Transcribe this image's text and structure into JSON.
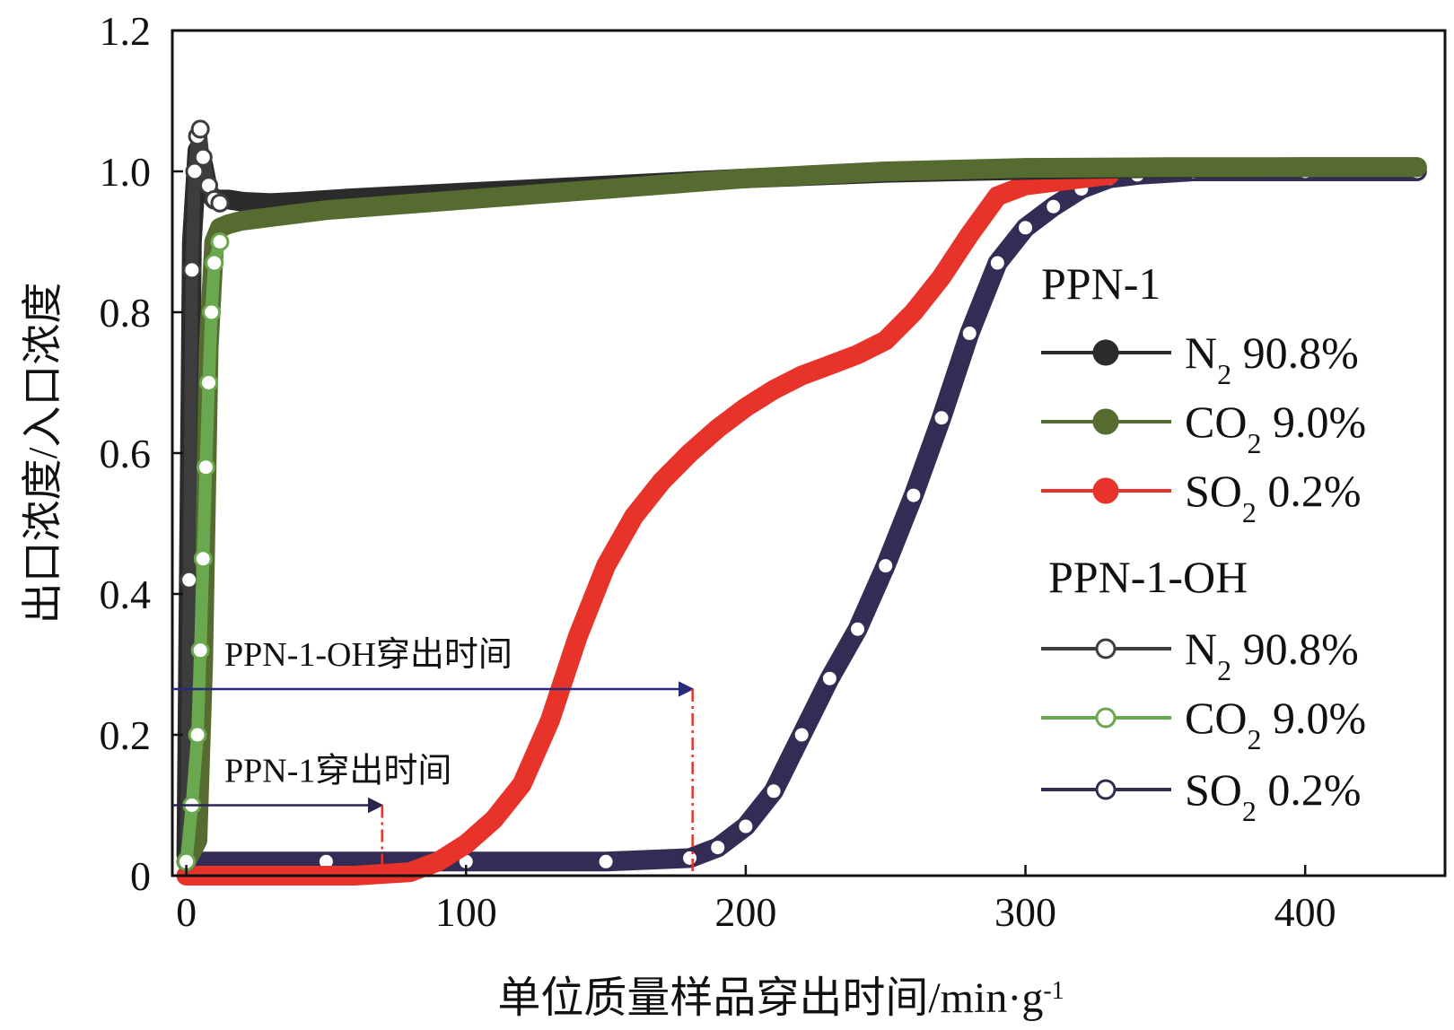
{
  "chart_data": {
    "type": "line",
    "title": "",
    "xlabel": "单位质量样品穿出时间/min·g",
    "xlabel_sup": "-1",
    "ylabel": "出口浓度/入口浓度",
    "xlim": [
      -5,
      450
    ],
    "ylim": [
      0,
      1.2
    ],
    "xticks": [
      0,
      100,
      200,
      300,
      400
    ],
    "yticks": [
      0,
      0.2,
      0.4,
      0.6,
      0.8,
      1.0,
      1.2
    ],
    "ytick_labels": [
      "0",
      "0.2",
      "0.4",
      "0.6",
      "0.8",
      "1.0",
      "1.2"
    ],
    "grid": false,
    "legend_position": "right",
    "legend_groups": [
      {
        "title": "PPN-1",
        "entries": [
          {
            "gas": "N",
            "sub": "2",
            "value": " 90.8%",
            "series": 0
          },
          {
            "gas": "CO",
            "sub": "2",
            "value": " 9.0%",
            "series": 1
          },
          {
            "gas": "SO",
            "sub": "2",
            "value": " 0.2%",
            "series": 2
          }
        ]
      },
      {
        "title": "PPN-1-OH",
        "entries": [
          {
            "gas": "N",
            "sub": "2",
            "value": " 90.8%",
            "series": 3
          },
          {
            "gas": "CO",
            "sub": "2",
            "value": " 9.0%",
            "series": 4
          },
          {
            "gas": "SO",
            "sub": "2",
            "value": " 0.2%",
            "series": 5
          }
        ]
      }
    ],
    "series": [
      {
        "group": "PPN-1",
        "color": "#2b2b2b",
        "marker": "filled",
        "x": [
          0,
          2,
          4,
          6,
          8,
          10,
          15,
          20,
          30,
          40,
          60,
          100,
          150,
          200,
          250,
          300,
          350,
          400,
          440
        ],
        "y": [
          0.03,
          0.9,
          1.03,
          1.01,
          0.97,
          0.96,
          0.96,
          0.957,
          0.955,
          0.957,
          0.962,
          0.97,
          0.98,
          0.99,
          0.998,
          1.002,
          1.005,
          1.006,
          1.006
        ]
      },
      {
        "group": "PPN-1",
        "color": "#556b2f",
        "marker": "filled",
        "x": [
          0,
          4,
          6,
          8,
          10,
          12,
          15,
          20,
          30,
          50,
          100,
          150,
          200,
          250,
          300,
          350,
          400,
          440
        ],
        "y": [
          0.02,
          0.05,
          0.3,
          0.75,
          0.9,
          0.92,
          0.925,
          0.93,
          0.935,
          0.945,
          0.96,
          0.975,
          0.99,
          1.0,
          1.005,
          1.006,
          1.006,
          1.006
        ]
      },
      {
        "group": "PPN-1",
        "color": "#e8332a",
        "marker": "filled",
        "x": [
          0,
          60,
          80,
          90,
          100,
          110,
          120,
          130,
          140,
          150,
          160,
          170,
          180,
          190,
          200,
          210,
          220,
          230,
          240,
          250,
          260,
          270,
          280,
          290,
          300,
          310,
          320,
          330
        ],
        "y": [
          0.0,
          0.0,
          0.005,
          0.02,
          0.045,
          0.08,
          0.13,
          0.22,
          0.34,
          0.44,
          0.51,
          0.56,
          0.6,
          0.635,
          0.665,
          0.69,
          0.71,
          0.725,
          0.74,
          0.76,
          0.8,
          0.85,
          0.91,
          0.965,
          0.98,
          0.985,
          0.99,
          0.995
        ]
      },
      {
        "group": "PPN-1-OH",
        "color": "#3d3d3d",
        "marker": "open",
        "x": [
          0,
          1,
          2,
          3,
          4,
          5,
          6,
          8,
          10,
          12
        ],
        "y": [
          0.02,
          0.42,
          0.86,
          1.0,
          1.05,
          1.06,
          1.02,
          0.98,
          0.96,
          0.955
        ]
      },
      {
        "group": "PPN-1-OH",
        "color": "#6aa84f",
        "marker": "open",
        "x": [
          0,
          2,
          4,
          5,
          6,
          7,
          8,
          9,
          10,
          12
        ],
        "y": [
          0.02,
          0.1,
          0.2,
          0.32,
          0.45,
          0.58,
          0.7,
          0.8,
          0.87,
          0.9
        ]
      },
      {
        "group": "PPN-1-OH",
        "color": "#332d55",
        "marker": "open",
        "x": [
          0,
          50,
          100,
          150,
          180,
          190,
          200,
          210,
          220,
          230,
          240,
          250,
          260,
          270,
          280,
          290,
          300,
          310,
          320,
          330,
          340,
          360,
          400,
          440
        ],
        "y": [
          0.02,
          0.02,
          0.02,
          0.02,
          0.025,
          0.04,
          0.07,
          0.12,
          0.2,
          0.28,
          0.35,
          0.44,
          0.54,
          0.65,
          0.77,
          0.87,
          0.92,
          0.95,
          0.975,
          0.99,
          0.995,
          1.0,
          1.0,
          1.0
        ]
      }
    ],
    "annotations": [
      {
        "text": "PPN-1-OH穿出时间",
        "arrow_y": 0.265,
        "arrow_x_end": 181,
        "dash_x": 181,
        "arrow_color": "#2a2a7a"
      },
      {
        "text": "PPN-1穿出时间",
        "arrow_y": 0.1,
        "arrow_x_end": 70,
        "dash_x": 70,
        "arrow_color": "#2a2450"
      }
    ]
  }
}
